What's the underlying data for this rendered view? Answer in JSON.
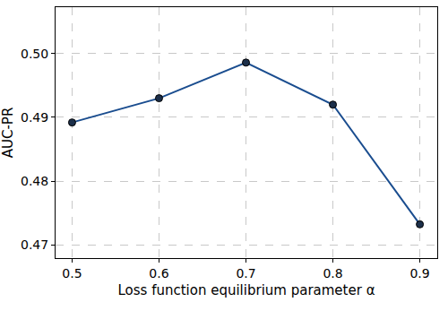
{
  "chart_data": {
    "type": "line",
    "x_label": "Loss function equilibrium parameter α",
    "y_label": "AUC-PR",
    "x": [
      0.5,
      0.6,
      0.7,
      0.8,
      0.9
    ],
    "values": [
      0.4892,
      0.493,
      0.4986,
      0.492,
      0.4732
    ],
    "color": "#1a4d8f",
    "marker": "circle",
    "line_style": "solid",
    "xlim": [
      0.481,
      0.92
    ],
    "xticks": [
      0.5,
      0.6,
      0.7,
      0.8,
      0.9
    ],
    "ylim": [
      0.4679,
      0.5073
    ],
    "yticks": [
      0.47,
      0.48,
      0.49,
      {
        "value": 0.5,
        "label": "0.50"
      }
    ],
    "grid": true
  }
}
